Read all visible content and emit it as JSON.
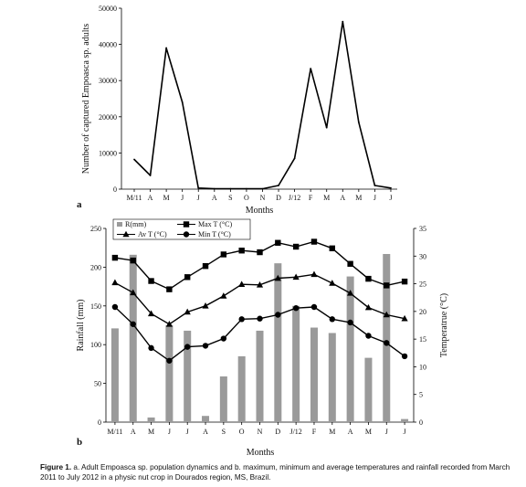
{
  "chart_data": [
    {
      "type": "line",
      "panel": "a",
      "ylabel": "Number of captured Empoasca sp. adults",
      "xlabel": "Months",
      "ylim": [
        0,
        50000
      ],
      "yticks": [
        "0",
        "10000",
        "20000",
        "30000",
        "40000",
        "50000"
      ],
      "categories": [
        "M/11",
        "A",
        "M",
        "J",
        "J",
        "A",
        "S",
        "O",
        "N",
        "D",
        "J/12",
        "F",
        "M",
        "A",
        "M",
        "J",
        "J"
      ],
      "values": [
        8200,
        3800,
        39000,
        24000,
        300,
        100,
        100,
        100,
        100,
        1000,
        8500,
        33300,
        17000,
        46300,
        18500,
        1000,
        300
      ]
    },
    {
      "type": "bar+line",
      "panel": "b",
      "ylabel": "Rainfall (mm)",
      "y2label": "Temperatrue (°C)",
      "xlabel": "Months",
      "ylim": [
        0,
        250
      ],
      "y2lim": [
        0,
        35
      ],
      "yticks": [
        "0",
        "50",
        "100",
        "150",
        "200",
        "250"
      ],
      "y2ticks": [
        "0",
        "5",
        "10",
        "15",
        "20",
        "25",
        "30",
        "35"
      ],
      "categories": [
        "M/11",
        "A",
        "M",
        "J",
        "J",
        "A",
        "S",
        "O",
        "N",
        "D",
        "J/12",
        "F",
        "M",
        "A",
        "M",
        "J",
        "J"
      ],
      "legend": [
        {
          "key": "rain",
          "label": "R(mm)"
        },
        {
          "key": "max",
          "label": "Max T (°C)"
        },
        {
          "key": "avg",
          "label": "Av T (°C)"
        },
        {
          "key": "min",
          "label": "Min T (°C)"
        }
      ],
      "series": [
        {
          "name": "R(mm)",
          "kind": "bar",
          "axis": "left",
          "values": [
            121,
            216,
            6,
            125,
            118,
            8,
            59,
            85,
            118,
            205,
            150,
            122,
            115,
            188,
            83,
            217,
            4
          ]
        },
        {
          "name": "Max T (°C)",
          "kind": "line",
          "marker": "square",
          "axis": "right",
          "values": [
            29.7,
            29.2,
            25.5,
            24.0,
            26.2,
            28.2,
            30.3,
            31.0,
            30.7,
            32.4,
            31.7,
            32.6,
            31.4,
            28.6,
            25.9,
            24.7,
            25.4
          ]
        },
        {
          "name": "Av T (°C)",
          "kind": "line",
          "marker": "triangle",
          "axis": "right",
          "values": [
            25.2,
            23.4,
            19.6,
            17.7,
            19.9,
            21.0,
            22.8,
            24.9,
            24.8,
            26.0,
            26.2,
            26.7,
            25.1,
            23.3,
            20.7,
            19.4,
            18.7
          ]
        },
        {
          "name": "Min T (°C)",
          "kind": "line",
          "marker": "circle",
          "axis": "right",
          "values": [
            20.8,
            17.7,
            13.4,
            11.1,
            13.6,
            13.8,
            15.1,
            18.6,
            18.7,
            19.4,
            20.6,
            20.8,
            18.6,
            18.0,
            15.6,
            14.3,
            11.9
          ]
        }
      ]
    }
  ],
  "caption": {
    "label": "Figure 1.",
    "text": " a. Adult Empoasca sp. population dynamics and b. maximum, minimum and average temperatures and rainfall recorded from March 2011 to July 2012 in a physic nut crop in Dourados region, MS, Brazil."
  },
  "colors": {
    "bar": "#9a9a9a",
    "line": "#000000"
  }
}
